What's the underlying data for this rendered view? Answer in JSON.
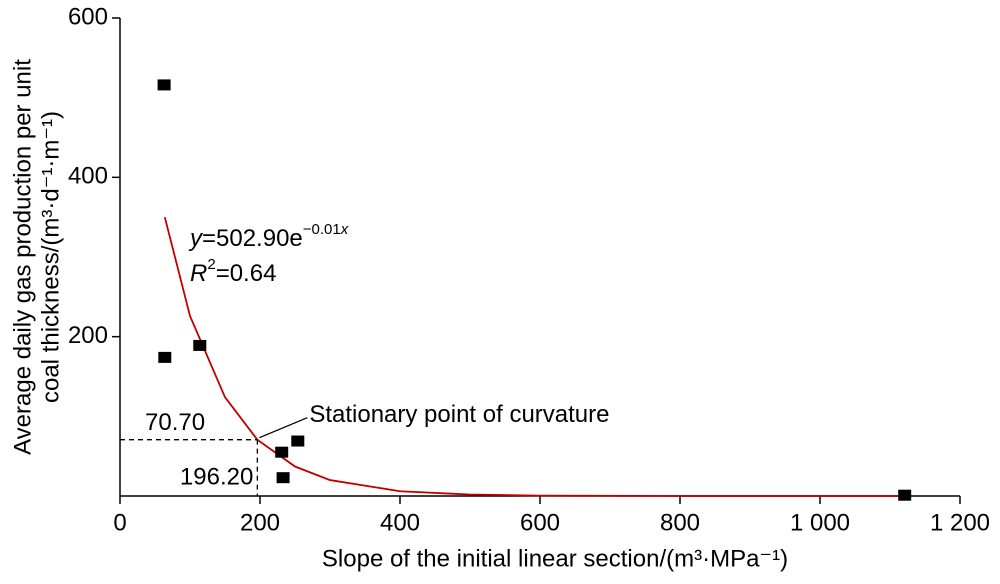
{
  "chart_data": {
    "type": "scatter",
    "x_label": "Slope of the initial linear section/(m³·MPa⁻¹)",
    "y_label": [
      "Average daily gas production per unit",
      "coal thickness/(m³·d⁻¹·m⁻¹)"
    ],
    "xlim": [
      0,
      1200
    ],
    "ylim": [
      0,
      600
    ],
    "xticks": [
      0,
      200,
      400,
      600,
      800,
      {
        "value": 1000,
        "label": "1 000"
      },
      {
        "value": 1200,
        "label": "1 200"
      }
    ],
    "yticks": [
      200,
      400,
      600
    ],
    "series": [
      {
        "color": "#000000",
        "x": [
          63,
          64,
          114,
          231,
          254,
          233,
          1121
        ],
        "values": [
          516,
          174,
          189,
          55,
          69,
          23,
          1
        ]
      }
    ],
    "fit": {
      "color": "#c00000",
      "x": [
        64,
        100,
        150,
        196.2,
        250,
        300,
        400,
        500,
        600,
        800,
        1120
      ],
      "values": [
        350,
        226,
        124,
        70.7,
        37,
        20,
        6,
        1.8,
        0.5,
        0,
        0
      ]
    },
    "equation": {
      "var": "y",
      "body": "=502.90e",
      "exp": "−0.01",
      "exp_var": "x"
    },
    "r2": {
      "var": "R",
      "sup": "2",
      "body": "=0.64"
    },
    "stationary_point": {
      "x": 196.2,
      "y": 70.7,
      "x_label": "196.20",
      "y_label": "70.70",
      "text": "Stationary point of curvature"
    }
  }
}
